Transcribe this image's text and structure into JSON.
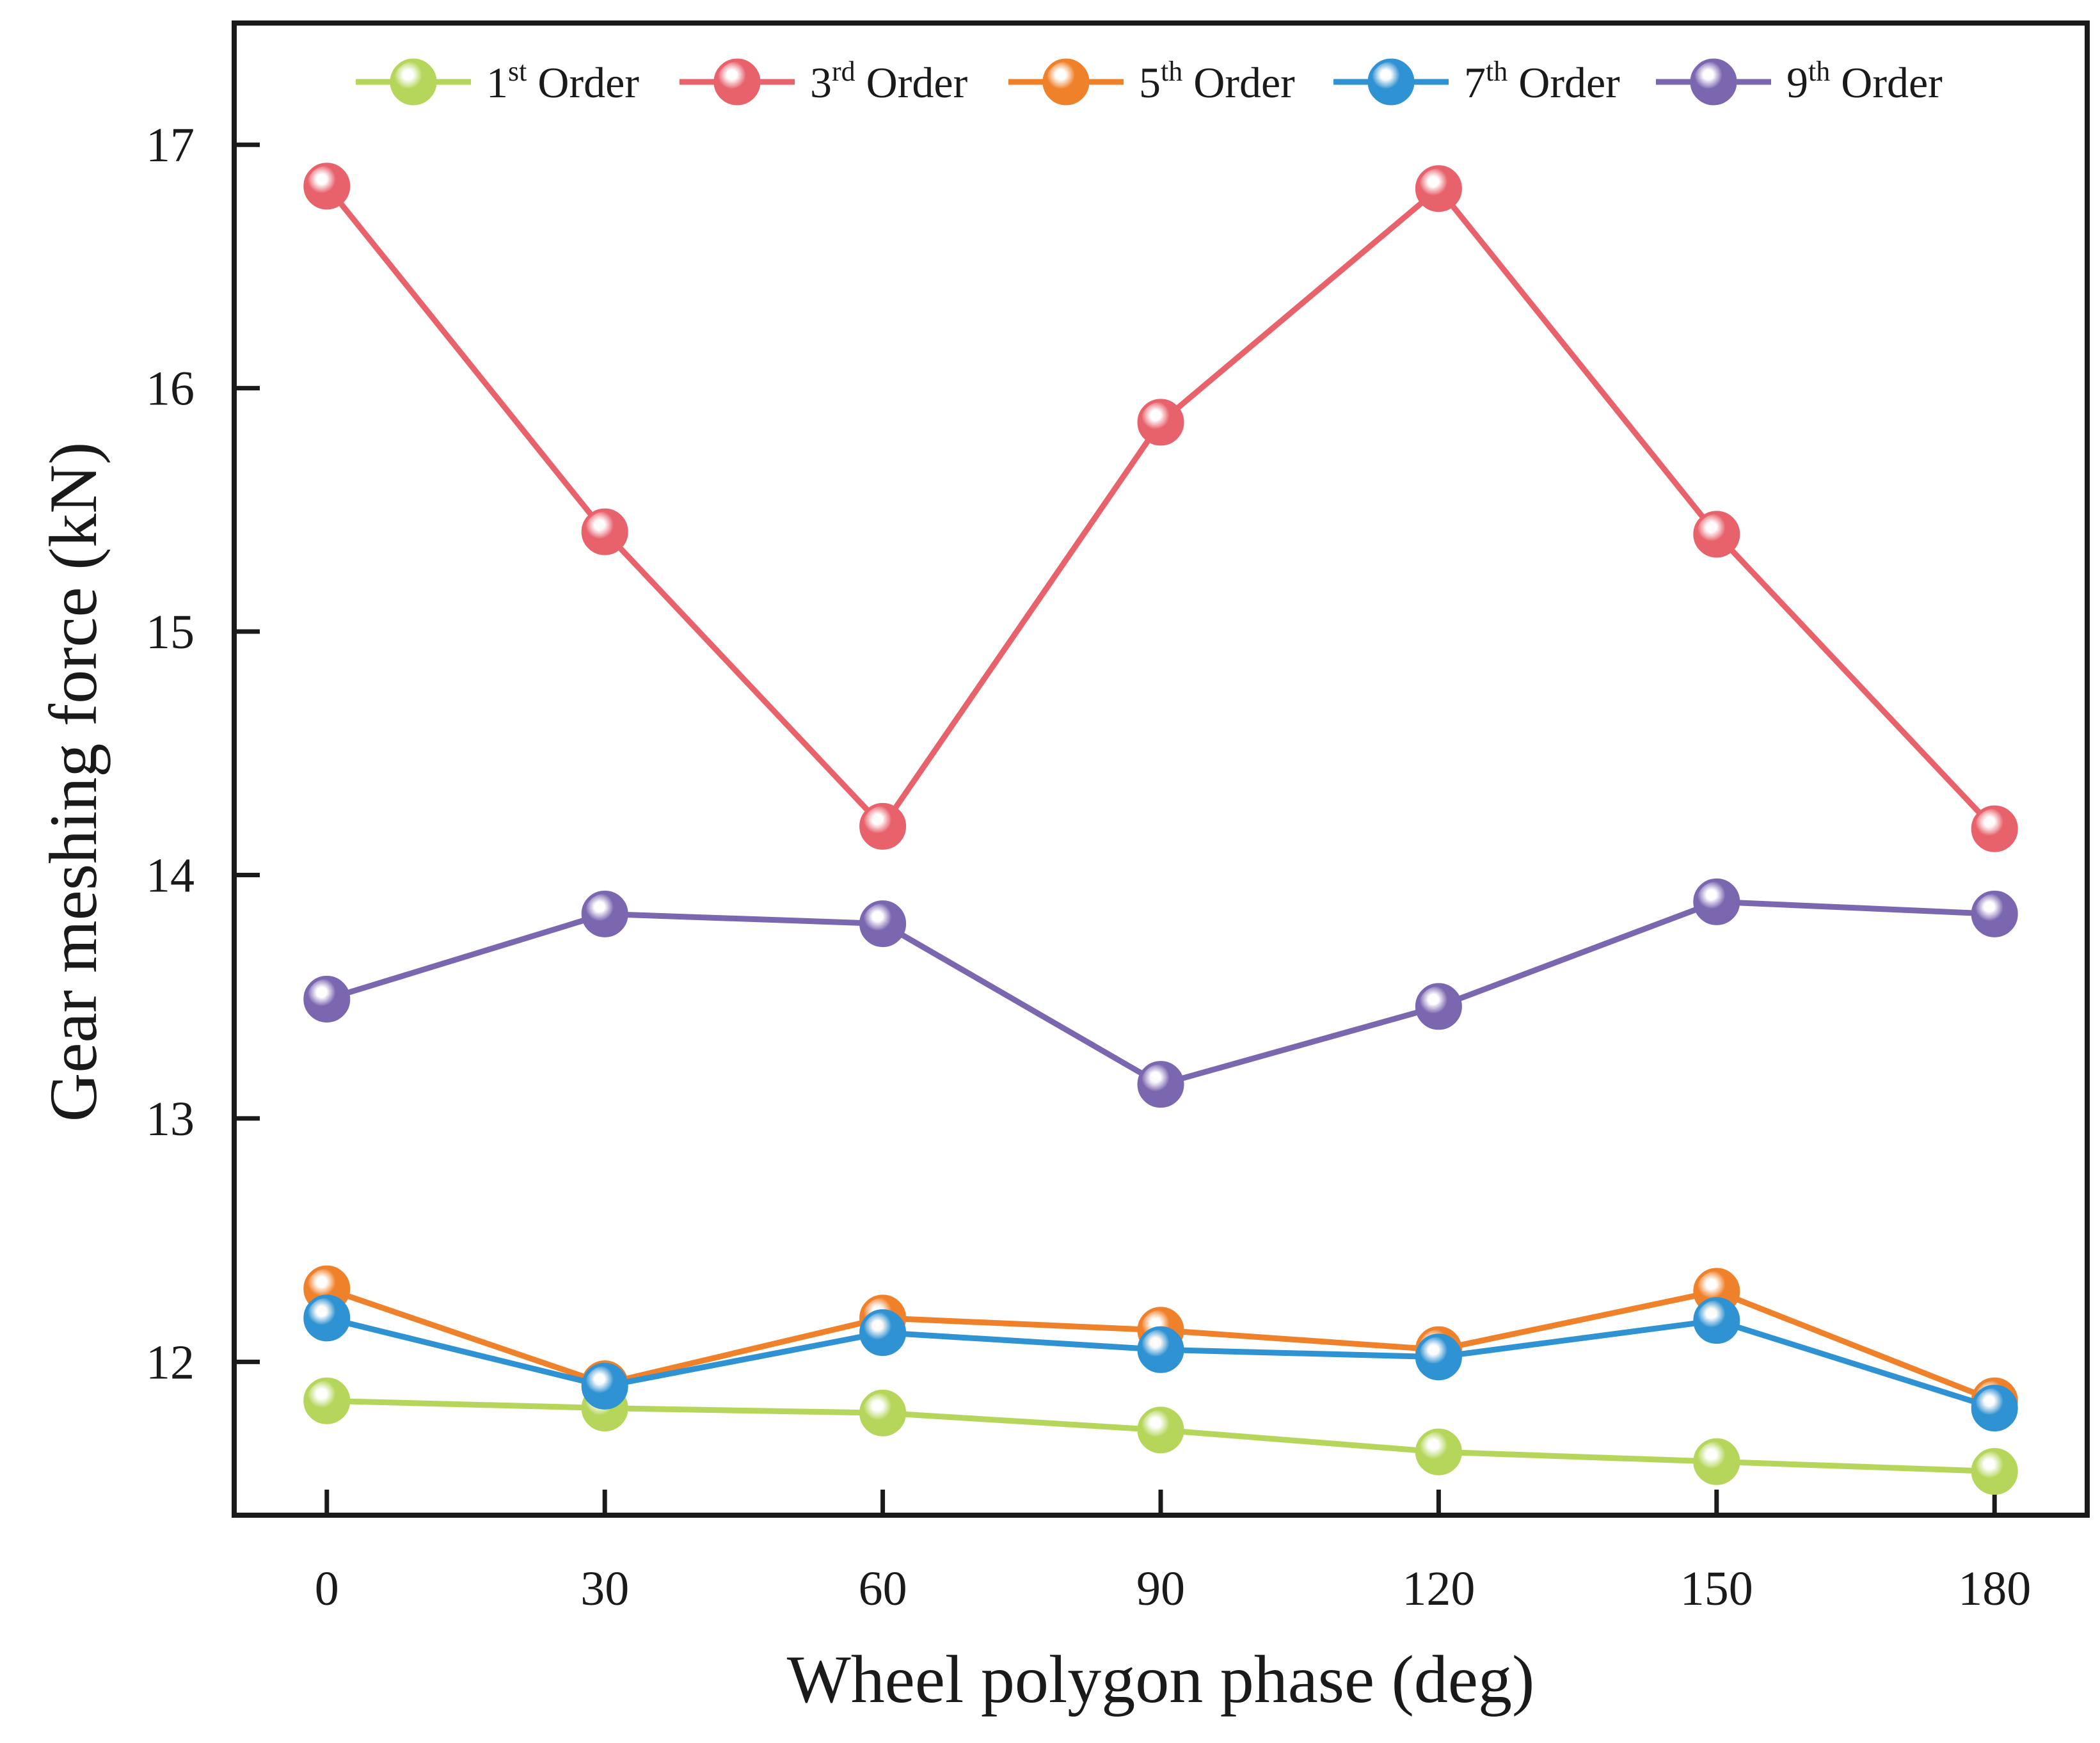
{
  "chart_data": {
    "type": "line",
    "title": "",
    "xlabel": "Wheel polygon phase (deg)",
    "ylabel": "Gear meshing force (kN)",
    "x": [
      0,
      30,
      60,
      90,
      120,
      150,
      180
    ],
    "x_tick_labels": [
      "0",
      "30",
      "60",
      "90",
      "120",
      "150",
      "180"
    ],
    "xlim": [
      -10,
      190
    ],
    "ylim": [
      11.37,
      17.5
    ],
    "y_ticks": [
      12,
      13,
      14,
      15,
      16,
      17
    ],
    "y_tick_labels": [
      "12",
      "13",
      "14",
      "15",
      "16",
      "17"
    ],
    "grid": false,
    "legend": {
      "placement": "top",
      "orientation": "horizontal"
    },
    "series": [
      {
        "name": "1st Order",
        "legend_num": "1",
        "legend_sup": "st",
        "legend_rest": " Order",
        "color": "#b5d65a",
        "values": [
          11.84,
          11.81,
          11.79,
          11.72,
          11.63,
          11.59,
          11.55
        ]
      },
      {
        "name": "3rd Order",
        "legend_num": "3",
        "legend_sup": "rd",
        "legend_rest": " Order",
        "color": "#e8626c",
        "values": [
          16.83,
          15.41,
          14.2,
          15.86,
          16.82,
          15.4,
          14.19
        ]
      },
      {
        "name": "5th Order",
        "legend_num": "5",
        "legend_sup": "th",
        "legend_rest": " Order",
        "color": "#f0812b",
        "values": [
          12.3,
          11.91,
          12.18,
          12.13,
          12.05,
          12.29,
          11.84
        ]
      },
      {
        "name": "7th Order",
        "legend_num": "7",
        "legend_sup": "th",
        "legend_rest": " Order",
        "color": "#2f92d2",
        "values": [
          12.18,
          11.9,
          12.12,
          12.05,
          12.02,
          12.17,
          11.81
        ]
      },
      {
        "name": "9th Order",
        "legend_num": "9",
        "legend_sup": "th",
        "legend_rest": " Order",
        "color": "#7b66b0",
        "values": [
          13.49,
          13.84,
          13.8,
          13.14,
          13.46,
          13.89,
          13.84
        ]
      }
    ]
  }
}
